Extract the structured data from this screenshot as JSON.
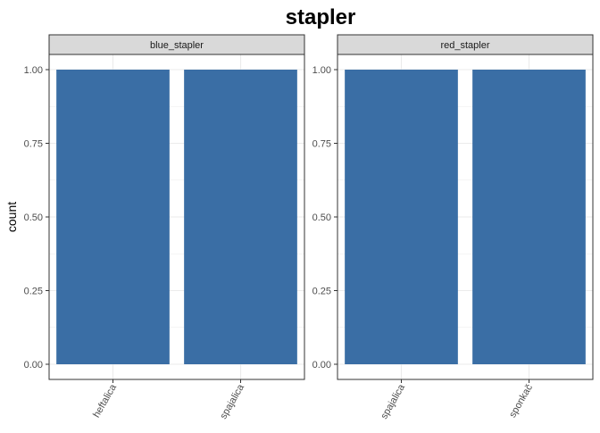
{
  "chart_data": {
    "type": "bar",
    "title": "stapler",
    "ylabel": "count",
    "xlabel": "",
    "ylim": [
      0,
      1.05
    ],
    "y_ticks": [
      "0.00",
      "0.25",
      "0.50",
      "0.75",
      "1.00"
    ],
    "y_tick_values": [
      0,
      0.25,
      0.5,
      0.75,
      1.0
    ],
    "grid": true,
    "bar_color": "#3A6EA5",
    "strip_color": "#D9D9D9",
    "panels": [
      {
        "name": "blue_stapler",
        "categories": [
          "heftalica",
          "spajalica"
        ],
        "values": [
          1,
          1
        ]
      },
      {
        "name": "red_stapler",
        "categories": [
          "spajalica",
          "sponkač"
        ],
        "values": [
          1,
          1
        ]
      }
    ]
  }
}
